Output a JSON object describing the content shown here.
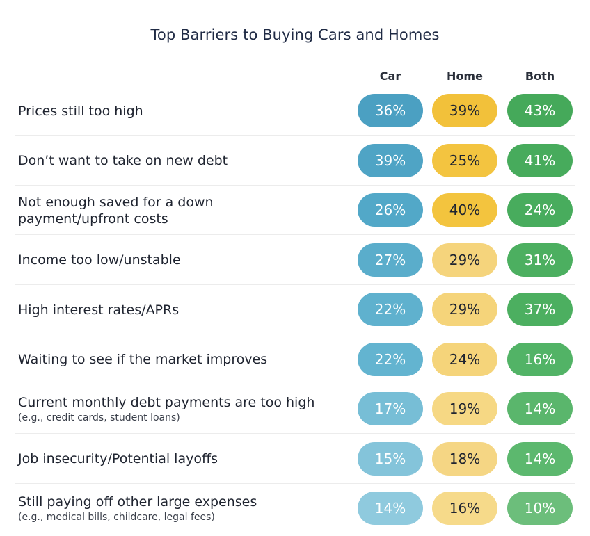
{
  "title": "Top Barriers to Buying Cars and Homes",
  "columns": [
    {
      "key": "car",
      "label": "Car"
    },
    {
      "key": "home",
      "label": "Home"
    },
    {
      "key": "both",
      "label": "Both"
    }
  ],
  "colors": {
    "car": [
      "#4ba0c2",
      "#4fa4c5",
      "#52a8c8",
      "#5aadcb",
      "#5fb1ce",
      "#63b4d0",
      "#77bed6",
      "#84c4da",
      "#8fcade"
    ],
    "home": [
      "#f2c13a",
      "#f3c440",
      "#f3c43e",
      "#f5d47c",
      "#f5d47a",
      "#f5d47a",
      "#f6d884",
      "#f5d684",
      "#f6da8a"
    ],
    "both": [
      "#45a95a",
      "#47ab5c",
      "#48ac5d",
      "#4caf60",
      "#4caf60",
      "#52b366",
      "#5ab66c",
      "#5cb86e",
      "#6cbe7b"
    ],
    "car_text": [
      "#ffffff",
      "#ffffff",
      "#ffffff",
      "#ffffff",
      "#ffffff",
      "#ffffff",
      "#ffffff",
      "#ffffff",
      "#ffffff"
    ],
    "home_text": [
      "#1f2430",
      "#1f2430",
      "#1f2430",
      "#1f2430",
      "#1f2430",
      "#1f2430",
      "#1f2430",
      "#1f2430",
      "#1f2430"
    ],
    "both_text": [
      "#ffffff",
      "#ffffff",
      "#ffffff",
      "#ffffff",
      "#ffffff",
      "#ffffff",
      "#ffffff",
      "#ffffff",
      "#ffffff"
    ]
  },
  "chart_data": {
    "type": "table",
    "title": "Top Barriers to Buying Cars and Homes",
    "columns": [
      "Car",
      "Home",
      "Both"
    ],
    "rows": [
      {
        "label": "Prices still too high",
        "note": "",
        "car": "36%",
        "home": "39%",
        "both": "43%"
      },
      {
        "label": "Don’t want to take on new debt",
        "note": "",
        "car": "39%",
        "home": "25%",
        "both": "41%"
      },
      {
        "label": "Not enough saved for a down payment/upfront costs",
        "note": "",
        "car": "26%",
        "home": "40%",
        "both": "24%"
      },
      {
        "label": "Income too low/unstable",
        "note": "",
        "car": "27%",
        "home": "29%",
        "both": "31%"
      },
      {
        "label": "High interest rates/APRs",
        "note": "",
        "car": "22%",
        "home": "29%",
        "both": "37%"
      },
      {
        "label": "Waiting to see if the market improves",
        "note": "",
        "car": "22%",
        "home": "24%",
        "both": "16%"
      },
      {
        "label": "Current monthly debt payments are too high",
        "note": "(e.g., credit cards, student loans)",
        "car": "17%",
        "home": "19%",
        "both": "14%"
      },
      {
        "label": "Job insecurity/Potential layoffs",
        "note": "",
        "car": "15%",
        "home": "18%",
        "both": "14%"
      },
      {
        "label": "Still paying off other large expenses",
        "note": "(e.g., medical bills, childcare, legal fees)",
        "car": "14%",
        "home": "16%",
        "both": "10%"
      }
    ]
  }
}
